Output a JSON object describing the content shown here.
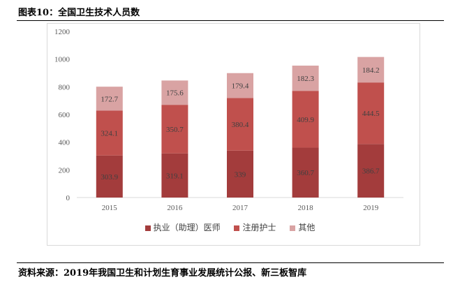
{
  "title": "图表10：全国卫生技术人员数",
  "source": "资料来源：2019年我国卫生和计划生育事业发展统计公报、新三板智库",
  "chart_data": {
    "type": "bar",
    "stacked": true,
    "categories": [
      "2015",
      "2016",
      "2017",
      "2018",
      "2019"
    ],
    "series": [
      {
        "name": "执业（助理）医师",
        "values": [
          303.9,
          319.1,
          339,
          360.7,
          386.7
        ],
        "color": "#A33C3C"
      },
      {
        "name": "注册护士",
        "values": [
          324.1,
          350.7,
          380.4,
          409.9,
          444.5
        ],
        "color": "#C0504D"
      },
      {
        "name": "其他",
        "values": [
          172.7,
          175.6,
          179.4,
          182.3,
          184.2
        ],
        "color": "#D9A3A3"
      }
    ],
    "data_labels": [
      [
        "303.9",
        "319.1",
        "339",
        "360.7",
        "386.7"
      ],
      [
        "324.1",
        "350.7",
        "380.4",
        "409.9",
        "444.5"
      ],
      [
        "172.7",
        "175.6",
        "179.4",
        "182.3",
        "184.2"
      ]
    ],
    "yticks": [
      "0",
      "200",
      "400",
      "600",
      "800",
      "1000",
      "1200"
    ],
    "ylim": [
      0,
      1200
    ],
    "grid": false,
    "legend": "bottom"
  }
}
